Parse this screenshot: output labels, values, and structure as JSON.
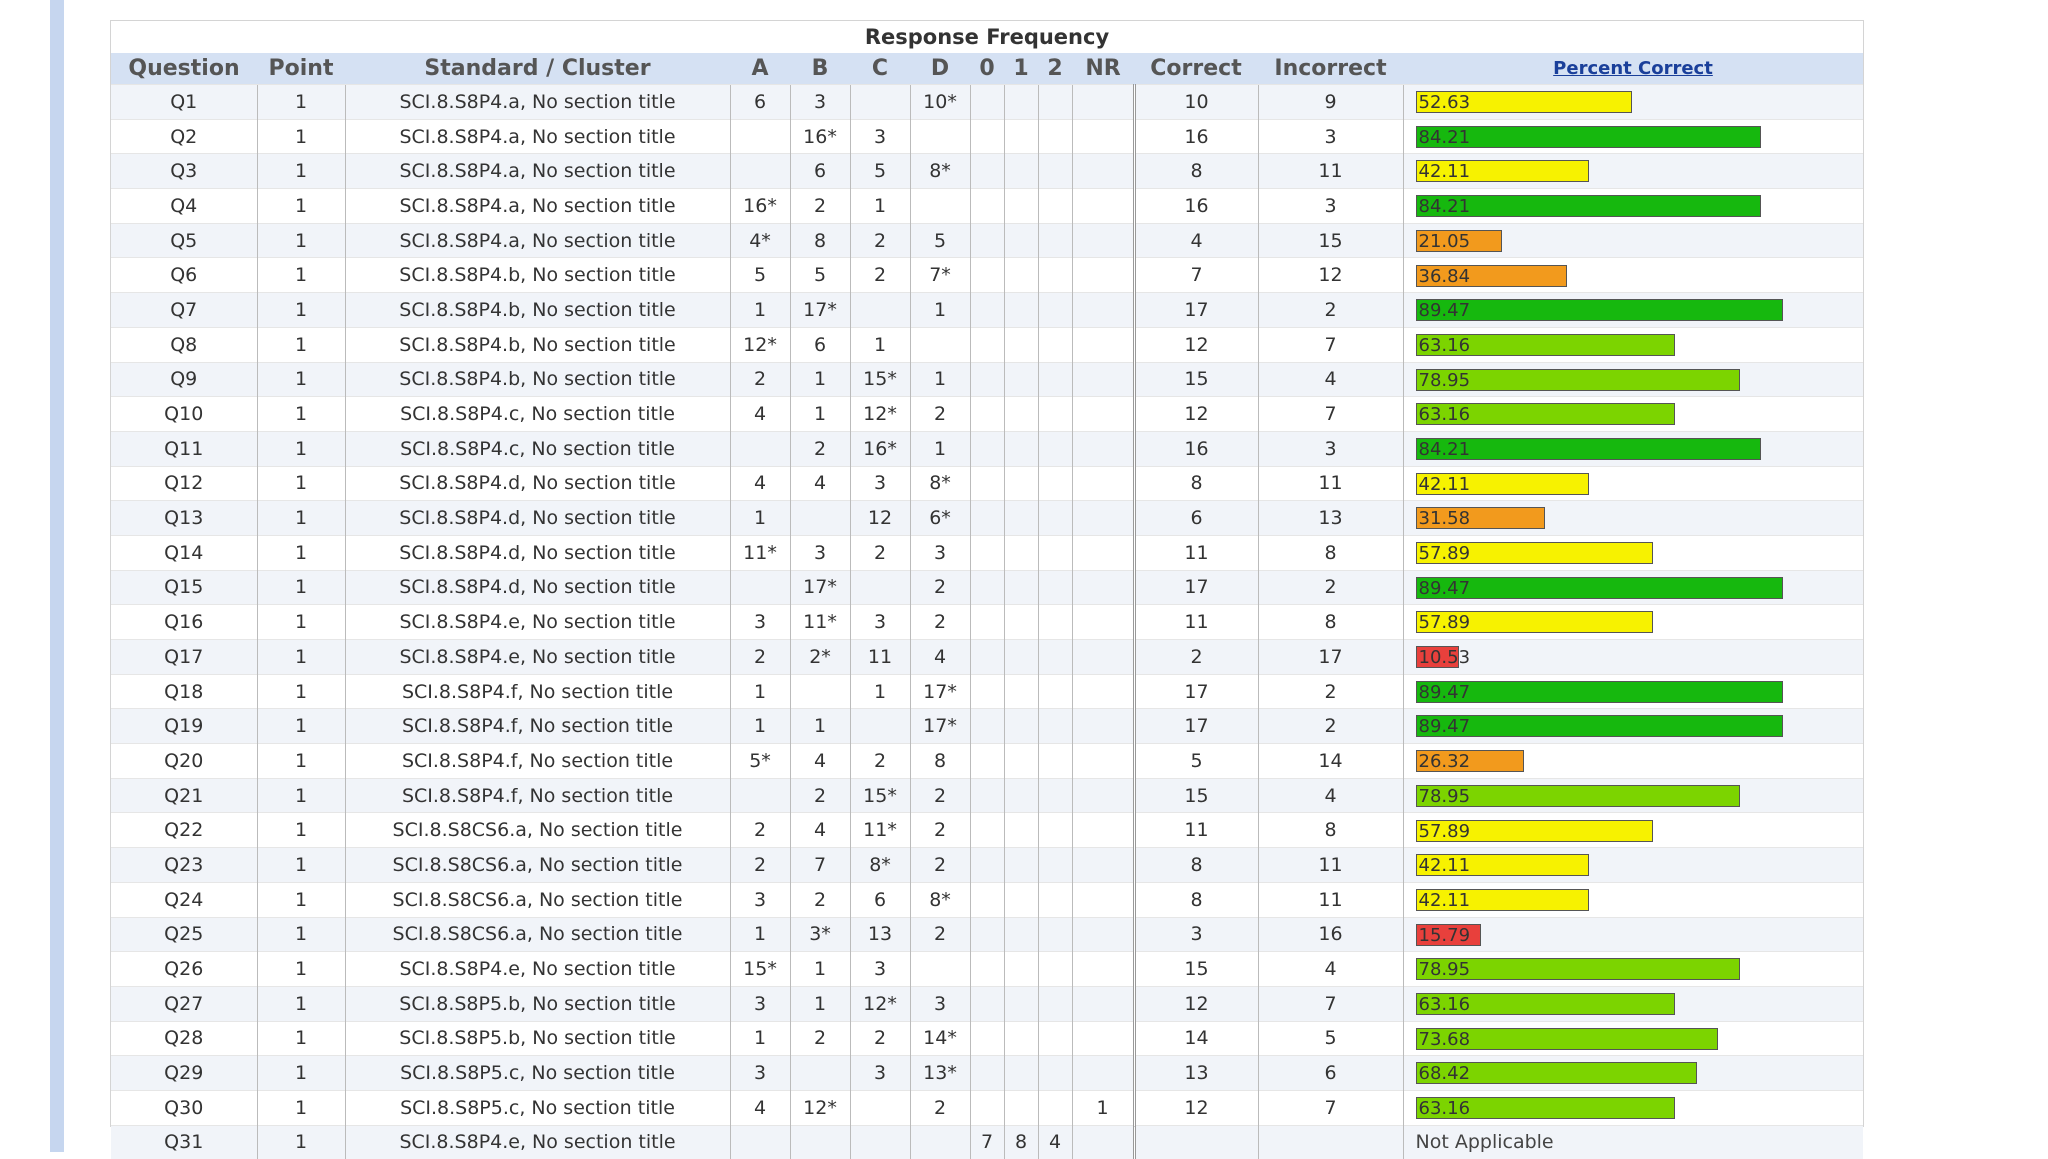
{
  "title": "Response Frequency",
  "headers": {
    "question": "Question",
    "point": "Point",
    "standard": "Standard / Cluster",
    "a": "A",
    "b": "B",
    "c": "C",
    "d": "D",
    "s0": "0",
    "s1": "1",
    "s2": "2",
    "nr": "NR",
    "correct": "Correct",
    "incorrect": "Incorrect",
    "percent": "Percent Correct"
  },
  "colors": {
    "red": "#e8403c",
    "orange": "#f29a1d",
    "yellow": "#f7f200",
    "lightgreen": "#7cd400",
    "green": "#16b80e"
  },
  "rows": [
    {
      "q": "Q1",
      "point": "1",
      "std": "SCI.8.S8P4.a, No section title",
      "a": "6",
      "b": "3",
      "c": "",
      "d": "10*",
      "s0": "",
      "s1": "",
      "s2": "",
      "nr": "",
      "correct": "10",
      "incorrect": "9",
      "pct": "52.63",
      "color": "yellow"
    },
    {
      "q": "Q2",
      "point": "1",
      "std": "SCI.8.S8P4.a, No section title",
      "a": "",
      "b": "16*",
      "c": "3",
      "d": "",
      "s0": "",
      "s1": "",
      "s2": "",
      "nr": "",
      "correct": "16",
      "incorrect": "3",
      "pct": "84.21",
      "color": "green"
    },
    {
      "q": "Q3",
      "point": "1",
      "std": "SCI.8.S8P4.a, No section title",
      "a": "",
      "b": "6",
      "c": "5",
      "d": "8*",
      "s0": "",
      "s1": "",
      "s2": "",
      "nr": "",
      "correct": "8",
      "incorrect": "11",
      "pct": "42.11",
      "color": "yellow"
    },
    {
      "q": "Q4",
      "point": "1",
      "std": "SCI.8.S8P4.a, No section title",
      "a": "16*",
      "b": "2",
      "c": "1",
      "d": "",
      "s0": "",
      "s1": "",
      "s2": "",
      "nr": "",
      "correct": "16",
      "incorrect": "3",
      "pct": "84.21",
      "color": "green"
    },
    {
      "q": "Q5",
      "point": "1",
      "std": "SCI.8.S8P4.a, No section title",
      "a": "4*",
      "b": "8",
      "c": "2",
      "d": "5",
      "s0": "",
      "s1": "",
      "s2": "",
      "nr": "",
      "correct": "4",
      "incorrect": "15",
      "pct": "21.05",
      "color": "orange"
    },
    {
      "q": "Q6",
      "point": "1",
      "std": "SCI.8.S8P4.b, No section title",
      "a": "5",
      "b": "5",
      "c": "2",
      "d": "7*",
      "s0": "",
      "s1": "",
      "s2": "",
      "nr": "",
      "correct": "7",
      "incorrect": "12",
      "pct": "36.84",
      "color": "orange"
    },
    {
      "q": "Q7",
      "point": "1",
      "std": "SCI.8.S8P4.b, No section title",
      "a": "1",
      "b": "17*",
      "c": "",
      "d": "1",
      "s0": "",
      "s1": "",
      "s2": "",
      "nr": "",
      "correct": "17",
      "incorrect": "2",
      "pct": "89.47",
      "color": "green"
    },
    {
      "q": "Q8",
      "point": "1",
      "std": "SCI.8.S8P4.b, No section title",
      "a": "12*",
      "b": "6",
      "c": "1",
      "d": "",
      "s0": "",
      "s1": "",
      "s2": "",
      "nr": "",
      "correct": "12",
      "incorrect": "7",
      "pct": "63.16",
      "color": "lightgreen"
    },
    {
      "q": "Q9",
      "point": "1",
      "std": "SCI.8.S8P4.b, No section title",
      "a": "2",
      "b": "1",
      "c": "15*",
      "d": "1",
      "s0": "",
      "s1": "",
      "s2": "",
      "nr": "",
      "correct": "15",
      "incorrect": "4",
      "pct": "78.95",
      "color": "lightgreen"
    },
    {
      "q": "Q10",
      "point": "1",
      "std": "SCI.8.S8P4.c, No section title",
      "a": "4",
      "b": "1",
      "c": "12*",
      "d": "2",
      "s0": "",
      "s1": "",
      "s2": "",
      "nr": "",
      "correct": "12",
      "incorrect": "7",
      "pct": "63.16",
      "color": "lightgreen"
    },
    {
      "q": "Q11",
      "point": "1",
      "std": "SCI.8.S8P4.c, No section title",
      "a": "",
      "b": "2",
      "c": "16*",
      "d": "1",
      "s0": "",
      "s1": "",
      "s2": "",
      "nr": "",
      "correct": "16",
      "incorrect": "3",
      "pct": "84.21",
      "color": "green"
    },
    {
      "q": "Q12",
      "point": "1",
      "std": "SCI.8.S8P4.d, No section title",
      "a": "4",
      "b": "4",
      "c": "3",
      "d": "8*",
      "s0": "",
      "s1": "",
      "s2": "",
      "nr": "",
      "correct": "8",
      "incorrect": "11",
      "pct": "42.11",
      "color": "yellow"
    },
    {
      "q": "Q13",
      "point": "1",
      "std": "SCI.8.S8P4.d, No section title",
      "a": "1",
      "b": "",
      "c": "12",
      "d": "6*",
      "s0": "",
      "s1": "",
      "s2": "",
      "nr": "",
      "correct": "6",
      "incorrect": "13",
      "pct": "31.58",
      "color": "orange"
    },
    {
      "q": "Q14",
      "point": "1",
      "std": "SCI.8.S8P4.d, No section title",
      "a": "11*",
      "b": "3",
      "c": "2",
      "d": "3",
      "s0": "",
      "s1": "",
      "s2": "",
      "nr": "",
      "correct": "11",
      "incorrect": "8",
      "pct": "57.89",
      "color": "yellow"
    },
    {
      "q": "Q15",
      "point": "1",
      "std": "SCI.8.S8P4.d, No section title",
      "a": "",
      "b": "17*",
      "c": "",
      "d": "2",
      "s0": "",
      "s1": "",
      "s2": "",
      "nr": "",
      "correct": "17",
      "incorrect": "2",
      "pct": "89.47",
      "color": "green"
    },
    {
      "q": "Q16",
      "point": "1",
      "std": "SCI.8.S8P4.e, No section title",
      "a": "3",
      "b": "11*",
      "c": "3",
      "d": "2",
      "s0": "",
      "s1": "",
      "s2": "",
      "nr": "",
      "correct": "11",
      "incorrect": "8",
      "pct": "57.89",
      "color": "yellow"
    },
    {
      "q": "Q17",
      "point": "1",
      "std": "SCI.8.S8P4.e, No section title",
      "a": "2",
      "b": "2*",
      "c": "11",
      "d": "4",
      "s0": "",
      "s1": "",
      "s2": "",
      "nr": "",
      "correct": "2",
      "incorrect": "17",
      "pct": "10.53",
      "color": "red"
    },
    {
      "q": "Q18",
      "point": "1",
      "std": "SCI.8.S8P4.f, No section title",
      "a": "1",
      "b": "",
      "c": "1",
      "d": "17*",
      "s0": "",
      "s1": "",
      "s2": "",
      "nr": "",
      "correct": "17",
      "incorrect": "2",
      "pct": "89.47",
      "color": "green"
    },
    {
      "q": "Q19",
      "point": "1",
      "std": "SCI.8.S8P4.f, No section title",
      "a": "1",
      "b": "1",
      "c": "",
      "d": "17*",
      "s0": "",
      "s1": "",
      "s2": "",
      "nr": "",
      "correct": "17",
      "incorrect": "2",
      "pct": "89.47",
      "color": "green"
    },
    {
      "q": "Q20",
      "point": "1",
      "std": "SCI.8.S8P4.f, No section title",
      "a": "5*",
      "b": "4",
      "c": "2",
      "d": "8",
      "s0": "",
      "s1": "",
      "s2": "",
      "nr": "",
      "correct": "5",
      "incorrect": "14",
      "pct": "26.32",
      "color": "orange"
    },
    {
      "q": "Q21",
      "point": "1",
      "std": "SCI.8.S8P4.f, No section title",
      "a": "",
      "b": "2",
      "c": "15*",
      "d": "2",
      "s0": "",
      "s1": "",
      "s2": "",
      "nr": "",
      "correct": "15",
      "incorrect": "4",
      "pct": "78.95",
      "color": "lightgreen"
    },
    {
      "q": "Q22",
      "point": "1",
      "std": "SCI.8.S8CS6.a, No section title",
      "a": "2",
      "b": "4",
      "c": "11*",
      "d": "2",
      "s0": "",
      "s1": "",
      "s2": "",
      "nr": "",
      "correct": "11",
      "incorrect": "8",
      "pct": "57.89",
      "color": "yellow"
    },
    {
      "q": "Q23",
      "point": "1",
      "std": "SCI.8.S8CS6.a, No section title",
      "a": "2",
      "b": "7",
      "c": "8*",
      "d": "2",
      "s0": "",
      "s1": "",
      "s2": "",
      "nr": "",
      "correct": "8",
      "incorrect": "11",
      "pct": "42.11",
      "color": "yellow"
    },
    {
      "q": "Q24",
      "point": "1",
      "std": "SCI.8.S8CS6.a, No section title",
      "a": "3",
      "b": "2",
      "c": "6",
      "d": "8*",
      "s0": "",
      "s1": "",
      "s2": "",
      "nr": "",
      "correct": "8",
      "incorrect": "11",
      "pct": "42.11",
      "color": "yellow"
    },
    {
      "q": "Q25",
      "point": "1",
      "std": "SCI.8.S8CS6.a, No section title",
      "a": "1",
      "b": "3*",
      "c": "13",
      "d": "2",
      "s0": "",
      "s1": "",
      "s2": "",
      "nr": "",
      "correct": "3",
      "incorrect": "16",
      "pct": "15.79",
      "color": "red"
    },
    {
      "q": "Q26",
      "point": "1",
      "std": "SCI.8.S8P4.e, No section title",
      "a": "15*",
      "b": "1",
      "c": "3",
      "d": "",
      "s0": "",
      "s1": "",
      "s2": "",
      "nr": "",
      "correct": "15",
      "incorrect": "4",
      "pct": "78.95",
      "color": "lightgreen"
    },
    {
      "q": "Q27",
      "point": "1",
      "std": "SCI.8.S8P5.b, No section title",
      "a": "3",
      "b": "1",
      "c": "12*",
      "d": "3",
      "s0": "",
      "s1": "",
      "s2": "",
      "nr": "",
      "correct": "12",
      "incorrect": "7",
      "pct": "63.16",
      "color": "lightgreen"
    },
    {
      "q": "Q28",
      "point": "1",
      "std": "SCI.8.S8P5.b, No section title",
      "a": "1",
      "b": "2",
      "c": "2",
      "d": "14*",
      "s0": "",
      "s1": "",
      "s2": "",
      "nr": "",
      "correct": "14",
      "incorrect": "5",
      "pct": "73.68",
      "color": "lightgreen"
    },
    {
      "q": "Q29",
      "point": "1",
      "std": "SCI.8.S8P5.c, No section title",
      "a": "3",
      "b": "",
      "c": "3",
      "d": "13*",
      "s0": "",
      "s1": "",
      "s2": "",
      "nr": "",
      "correct": "13",
      "incorrect": "6",
      "pct": "68.42",
      "color": "lightgreen"
    },
    {
      "q": "Q30",
      "point": "1",
      "std": "SCI.8.S8P5.c, No section title",
      "a": "4",
      "b": "12*",
      "c": "",
      "d": "2",
      "s0": "",
      "s1": "",
      "s2": "",
      "nr": "1",
      "correct": "12",
      "incorrect": "7",
      "pct": "63.16",
      "color": "lightgreen"
    },
    {
      "q": "Q31",
      "point": "1",
      "std": "SCI.8.S8P4.e, No section title",
      "a": "",
      "b": "",
      "c": "",
      "d": "",
      "s0": "7",
      "s1": "8",
      "s2": "4",
      "nr": "",
      "correct": "",
      "incorrect": "",
      "pct": "",
      "color": "",
      "pct_text": "Not Applicable"
    }
  ]
}
